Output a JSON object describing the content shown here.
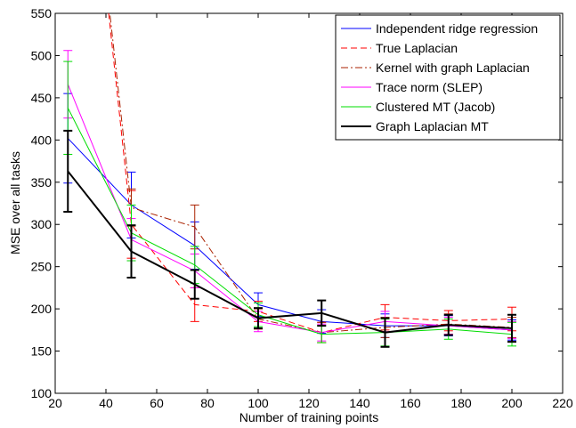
{
  "chart_data": {
    "type": "line",
    "xlabel": "Number of training points",
    "ylabel": "MSE over all tasks",
    "xlim": [
      20,
      220
    ],
    "ylim": [
      100,
      550
    ],
    "xticks": [
      20,
      40,
      60,
      80,
      100,
      120,
      140,
      160,
      180,
      200,
      220
    ],
    "yticks": [
      100,
      150,
      200,
      250,
      300,
      350,
      400,
      450,
      500,
      550
    ],
    "xticklabels": [
      "20",
      "40",
      "60",
      "80",
      "100",
      "120",
      "140",
      "160",
      "180",
      "200",
      "220"
    ],
    "yticklabels": [
      "100",
      "150",
      "200",
      "250",
      "300",
      "350",
      "400",
      "450",
      "500",
      "550"
    ],
    "legend_position": "top-right",
    "grid": false,
    "x": [
      25,
      50,
      75,
      100,
      125,
      150,
      175,
      200
    ],
    "series": [
      {
        "name": "Independent ridge regression",
        "color": "#0000ff",
        "line_style": "solid",
        "values": [
          402,
          323,
          275,
          205,
          185,
          180,
          180,
          175
        ],
        "errors": [
          53,
          39,
          28,
          14,
          14,
          14,
          12,
          12
        ]
      },
      {
        "name": "True Laplacian",
        "color": "#ff0000",
        "line_style": "dashed",
        "values": [
          1000,
          300,
          205,
          197,
          172,
          190,
          186,
          188
        ],
        "errors": [
          60,
          40,
          20,
          12,
          12,
          15,
          12,
          14
        ]
      },
      {
        "name": "Kernel with graph Laplacian",
        "color": "#aa2200",
        "line_style": "dashdot",
        "values": [
          1000,
          320,
          297,
          188,
          172,
          178,
          182,
          178
        ],
        "errors": [
          60,
          22,
          26,
          12,
          12,
          12,
          12,
          12
        ]
      },
      {
        "name": "Trace norm (SLEP)",
        "color": "#ff00ff",
        "line_style": "solid",
        "values": [
          466,
          282,
          245,
          185,
          172,
          185,
          180,
          175
        ],
        "errors": [
          40,
          25,
          20,
          12,
          10,
          12,
          10,
          10
        ]
      },
      {
        "name": "Clustered MT (Jacob)",
        "color": "#00dd00",
        "line_style": "solid",
        "values": [
          438,
          290,
          252,
          193,
          170,
          172,
          176,
          170
        ],
        "errors": [
          55,
          33,
          22,
          14,
          10,
          16,
          12,
          14
        ]
      },
      {
        "name": "Graph Laplacian MT",
        "color": "#000000",
        "line_style": "solid",
        "values": [
          363,
          268,
          229,
          189,
          195,
          172,
          181,
          177
        ],
        "errors": [
          48,
          31,
          17,
          12,
          15,
          17,
          12,
          16
        ]
      }
    ]
  }
}
